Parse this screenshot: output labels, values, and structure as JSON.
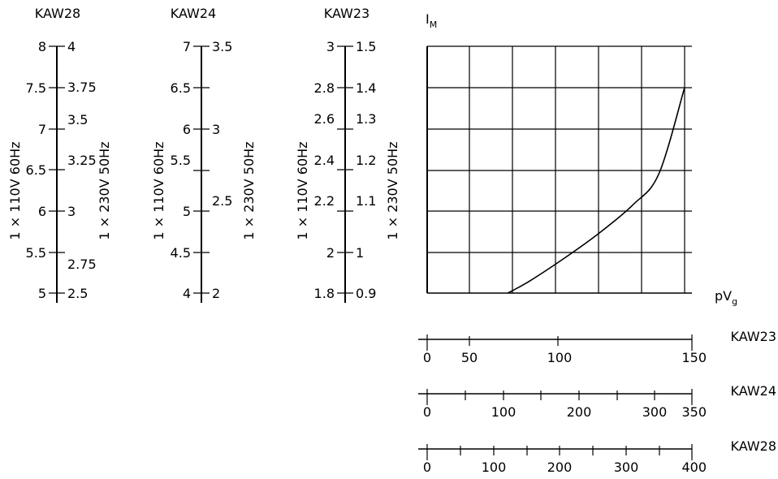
{
  "chart_data": {
    "type": "line",
    "ylabel": "I",
    "ylabel_sub": "M",
    "xlabel": "pV",
    "xlabel_sub": "g",
    "grid": true,
    "series": [
      {
        "color": "#000000",
        "points": [
          [
            47,
            1.8
          ],
          [
            60,
            1.86
          ],
          [
            80,
            1.97
          ],
          [
            100,
            2.09
          ],
          [
            120,
            2.23
          ],
          [
            135,
            2.38
          ],
          [
            150,
            2.8
          ]
        ]
      }
    ],
    "ylim": [
      1.8,
      3.0
    ],
    "xlim": [
      0,
      150
    ],
    "left_scales": [
      {
        "name": "KAW28",
        "left_label": "1 × 110V 60Hz",
        "right_label": "1 × 230V 50Hz",
        "min": 5,
        "max": 8,
        "left_ticks": [
          "8",
          "7.5",
          "7",
          "6.5",
          "6",
          "5.5",
          "5"
        ],
        "right_ticks": [
          "4",
          "3.75",
          "3.5",
          "3.25",
          "3",
          "2.75",
          "2.5"
        ]
      },
      {
        "name": "KAW24",
        "left_label": "1 × 110V 60Hz",
        "right_label": "1 × 230V 50Hz",
        "min": 4,
        "max": 7,
        "left_ticks": [
          "7",
          "6.5",
          "6",
          "5.5",
          "5",
          "4.5",
          "4"
        ],
        "right_ticks": [
          "3.5",
          "3",
          "2.5",
          "2"
        ]
      },
      {
        "name": "KAW23",
        "left_label": "1 × 110V 60Hz",
        "right_label": "1 × 230V 50Hz",
        "min": 1.8,
        "max": 3.0,
        "left_ticks": [
          "3",
          "2.8",
          "2.6",
          "2.4",
          "2.2",
          "2",
          "1.8"
        ],
        "right_ticks": [
          "1.5",
          "1.4",
          "1.3",
          "1.2",
          "1.1",
          "1",
          "0.9"
        ]
      }
    ],
    "bottom_scales": [
      {
        "name": "KAW23",
        "min": 0,
        "max": 150,
        "labels": [
          "0",
          "50",
          "100",
          "150"
        ]
      },
      {
        "name": "KAW24",
        "min": 0,
        "max": 350,
        "labels": [
          "0",
          "100",
          "200",
          "300",
          "350"
        ]
      },
      {
        "name": "KAW28",
        "min": 0,
        "max": 400,
        "labels": [
          "0",
          "100",
          "200",
          "300",
          "400"
        ]
      }
    ]
  }
}
